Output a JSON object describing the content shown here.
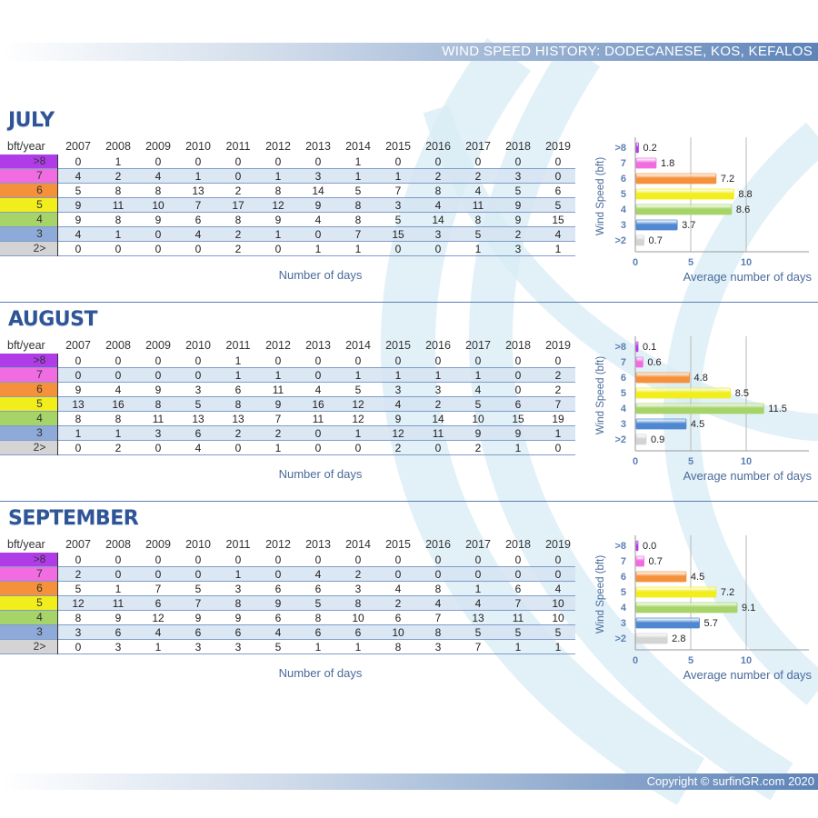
{
  "title": "WIND SPEED HISTORY: DODECANESE, KOS, KEFALOS",
  "copyright": "Copyright © surfinGR.com 2020",
  "table_header_label": "bft/year",
  "years": [
    "2007",
    "2008",
    "2009",
    "2010",
    "2011",
    "2012",
    "2013",
    "2014",
    "2015",
    "2016",
    "2017",
    "2018",
    "2019"
  ],
  "row_labels": [
    ">8",
    "7",
    "6",
    "5",
    "4",
    "3",
    "2>"
  ],
  "row_colors": [
    "#b03ce8",
    "#f06ce0",
    "#f5913a",
    "#f2ee1c",
    "#a6d468",
    "#8eaad8",
    "#d4d4d4"
  ],
  "x_caption": "Number of days",
  "months": [
    {
      "name": "JULY",
      "rows": [
        [
          0,
          1,
          0,
          0,
          0,
          0,
          0,
          1,
          0,
          0,
          0,
          0,
          0
        ],
        [
          4,
          2,
          4,
          1,
          0,
          1,
          3,
          1,
          1,
          2,
          2,
          3,
          0
        ],
        [
          5,
          8,
          8,
          13,
          2,
          8,
          14,
          5,
          7,
          8,
          4,
          5,
          6
        ],
        [
          9,
          11,
          10,
          7,
          17,
          12,
          9,
          8,
          3,
          4,
          11,
          9,
          5
        ],
        [
          9,
          8,
          9,
          6,
          8,
          9,
          4,
          8,
          5,
          14,
          8,
          9,
          15
        ],
        [
          4,
          1,
          0,
          4,
          2,
          1,
          0,
          7,
          15,
          3,
          5,
          2,
          4
        ],
        [
          0,
          0,
          0,
          0,
          2,
          0,
          1,
          1,
          0,
          0,
          1,
          3,
          1
        ]
      ]
    },
    {
      "name": "AUGUST",
      "rows": [
        [
          0,
          0,
          0,
          0,
          1,
          0,
          0,
          0,
          0,
          0,
          0,
          0,
          0
        ],
        [
          0,
          0,
          0,
          0,
          1,
          1,
          0,
          1,
          1,
          1,
          1,
          0,
          2
        ],
        [
          9,
          4,
          9,
          3,
          6,
          11,
          4,
          5,
          3,
          3,
          4,
          0,
          2
        ],
        [
          13,
          16,
          8,
          5,
          8,
          9,
          16,
          12,
          4,
          2,
          5,
          6,
          7
        ],
        [
          8,
          8,
          11,
          13,
          13,
          7,
          11,
          12,
          9,
          14,
          10,
          15,
          19
        ],
        [
          1,
          1,
          3,
          6,
          2,
          2,
          0,
          1,
          12,
          11,
          9,
          9,
          1
        ],
        [
          0,
          2,
          0,
          4,
          0,
          1,
          0,
          0,
          2,
          0,
          2,
          1,
          0
        ]
      ]
    },
    {
      "name": "SEPTEMBER",
      "rows": [
        [
          0,
          0,
          0,
          0,
          0,
          0,
          0,
          0,
          0,
          0,
          0,
          0,
          0
        ],
        [
          2,
          0,
          0,
          0,
          1,
          0,
          4,
          2,
          0,
          0,
          0,
          0,
          0
        ],
        [
          5,
          1,
          7,
          5,
          3,
          6,
          6,
          3,
          4,
          8,
          1,
          6,
          4
        ],
        [
          12,
          11,
          6,
          7,
          8,
          9,
          5,
          8,
          2,
          4,
          4,
          7,
          10
        ],
        [
          8,
          9,
          12,
          9,
          9,
          6,
          8,
          10,
          6,
          7,
          13,
          11,
          10
        ],
        [
          3,
          6,
          4,
          6,
          6,
          4,
          6,
          6,
          10,
          8,
          5,
          5,
          5
        ],
        [
          0,
          3,
          1,
          3,
          3,
          5,
          1,
          1,
          8,
          3,
          7,
          1,
          1
        ]
      ]
    }
  ],
  "chart_data": [
    {
      "type": "bar",
      "orientation": "horizontal",
      "categories": [
        ">8",
        "7",
        "6",
        "5",
        "4",
        "3",
        ">2"
      ],
      "values": [
        0.2,
        1.8,
        7.2,
        8.8,
        8.6,
        3.7,
        0.7
      ],
      "xlabel": "Average number of days",
      "ylabel": "Wind Speed (bft)",
      "xlim": [
        0,
        15
      ],
      "xticks": [
        "0",
        "5",
        "10"
      ],
      "value_labels": [
        "0.2",
        "1.8",
        "7.2",
        "8.8",
        "8.6",
        "3.7",
        "0.7"
      ],
      "colors": [
        "#b03ce8",
        "#f06ce0",
        "#f5913a",
        "#f2ee1c",
        "#a6d468",
        "#4f88d0",
        "#d4d4d4"
      ],
      "grid": true
    },
    {
      "type": "bar",
      "orientation": "horizontal",
      "categories": [
        ">8",
        "7",
        "6",
        "5",
        "4",
        "3",
        ">2"
      ],
      "values": [
        0.1,
        0.6,
        4.8,
        8.5,
        11.5,
        4.5,
        0.9
      ],
      "xlabel": "Average number of days",
      "ylabel": "Wind Speed (bft)",
      "xlim": [
        0,
        15
      ],
      "xticks": [
        "0",
        "5",
        "10"
      ],
      "value_labels": [
        "0.1",
        "0.6",
        "4.8",
        "8.5",
        "11.5",
        "4.5",
        "0.9"
      ],
      "colors": [
        "#b03ce8",
        "#f06ce0",
        "#f5913a",
        "#f2ee1c",
        "#a6d468",
        "#4f88d0",
        "#d4d4d4"
      ],
      "grid": true
    },
    {
      "type": "bar",
      "orientation": "horizontal",
      "categories": [
        ">8",
        "7",
        "6",
        "5",
        "4",
        "3",
        ">2"
      ],
      "values": [
        0.0,
        0.7,
        4.5,
        7.2,
        9.1,
        5.7,
        2.8
      ],
      "xlabel": "Average number of days",
      "ylabel": "Wind Speed (bft)",
      "xlim": [
        0,
        15
      ],
      "xticks": [
        "0",
        "5",
        "10"
      ],
      "value_labels": [
        "0.0",
        "0.7",
        "4.5",
        "7.2",
        "9.1",
        "5.7",
        "2.8"
      ],
      "colors": [
        "#b03ce8",
        "#f06ce0",
        "#f5913a",
        "#f2ee1c",
        "#a6d468",
        "#4f88d0",
        "#d4d4d4"
      ],
      "grid": true
    }
  ]
}
